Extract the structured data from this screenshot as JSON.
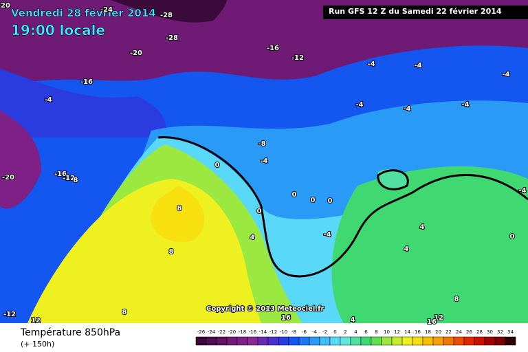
{
  "header": {
    "title": "Vendredi 28 février 2014",
    "time": "19:00 locale",
    "run": "Run GFS 12 Z du Samedi 22 février 2014"
  },
  "map": {
    "contour_labels": [
      20,
      -24,
      -28,
      -28,
      -20,
      -16,
      -4,
      -16,
      -12,
      -4,
      -4,
      -4,
      -4,
      -4,
      -4,
      -8,
      -4,
      0,
      -16,
      -12,
      8,
      -20,
      0,
      0,
      0,
      -4,
      8,
      0,
      4,
      4,
      0,
      -4,
      4,
      8,
      8,
      -12,
      12,
      8,
      12,
      16,
      4,
      16
    ]
  },
  "copyright": "Copyright © 2013 Meteociel.fr",
  "legend": {
    "title": "Température 850hPa",
    "lead": "(+ 150h)",
    "scale": [
      -26,
      -24,
      -22,
      -20,
      -18,
      -16,
      -14,
      -12,
      -10,
      -8,
      -6,
      -4,
      -2,
      0,
      2,
      4,
      6,
      8,
      10,
      12,
      14,
      16,
      18,
      20,
      22,
      24,
      26,
      28,
      30,
      32,
      34
    ],
    "colors": [
      "#3a0a3a",
      "#4d0f4f",
      "#5e1462",
      "#6f1a74",
      "#7f2086",
      "#8a2a96",
      "#6a2ab0",
      "#4a2ec8",
      "#2a3ce0",
      "#1456f0",
      "#1a78f5",
      "#2a9af7",
      "#40bcf8",
      "#5ad8f8",
      "#60e8e0",
      "#50e0a0",
      "#40d870",
      "#60e050",
      "#9ae840",
      "#c8ec30",
      "#eef020",
      "#f8e010",
      "#f8c000",
      "#f8a000",
      "#f07800",
      "#e85000",
      "#e02800",
      "#c81000",
      "#a00000",
      "#780000",
      "#300000"
    ]
  }
}
